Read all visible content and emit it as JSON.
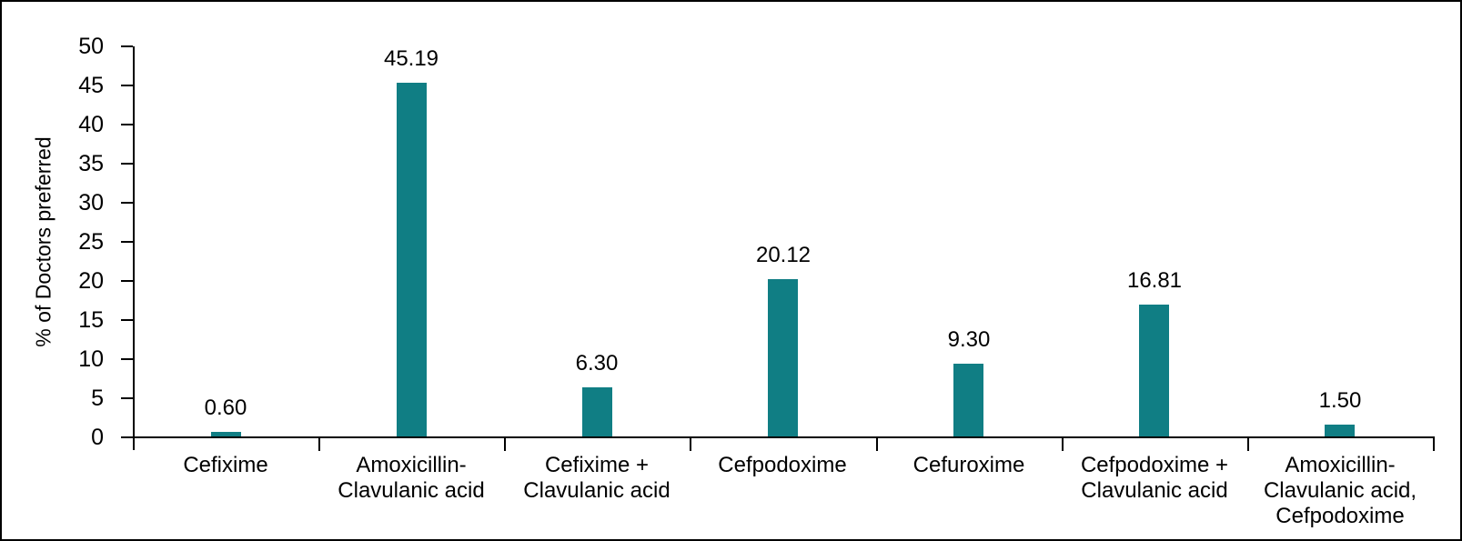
{
  "figure": {
    "background": "#ffffff",
    "border_color": "#000000"
  },
  "chart_data": {
    "type": "bar",
    "title": "",
    "ylabel": "% of Doctors preferred",
    "xlabel": "",
    "ylim": [
      0,
      50
    ],
    "yticks": [
      0,
      5,
      10,
      15,
      20,
      25,
      30,
      35,
      40,
      45,
      50
    ],
    "categories": [
      "Cefixime",
      "Amoxicillin-\nClavulanic acid",
      "Cefixime +\nClavulanic acid",
      "Cefpodoxime",
      "Cefuroxime",
      "Cefpodoxime +\nClavulanic acid",
      "Amoxicillin-\nClavulanic acid,\nCefpodoxime"
    ],
    "values": [
      0.6,
      45.19,
      6.3,
      20.12,
      9.3,
      16.81,
      1.5
    ],
    "value_labels": [
      "0.60",
      "45.19",
      "6.30",
      "20.12",
      "9.30",
      "16.81",
      "1.50"
    ],
    "bar_color": "#107E84",
    "axis_color": "#000000",
    "grid": false,
    "legend": "none"
  }
}
